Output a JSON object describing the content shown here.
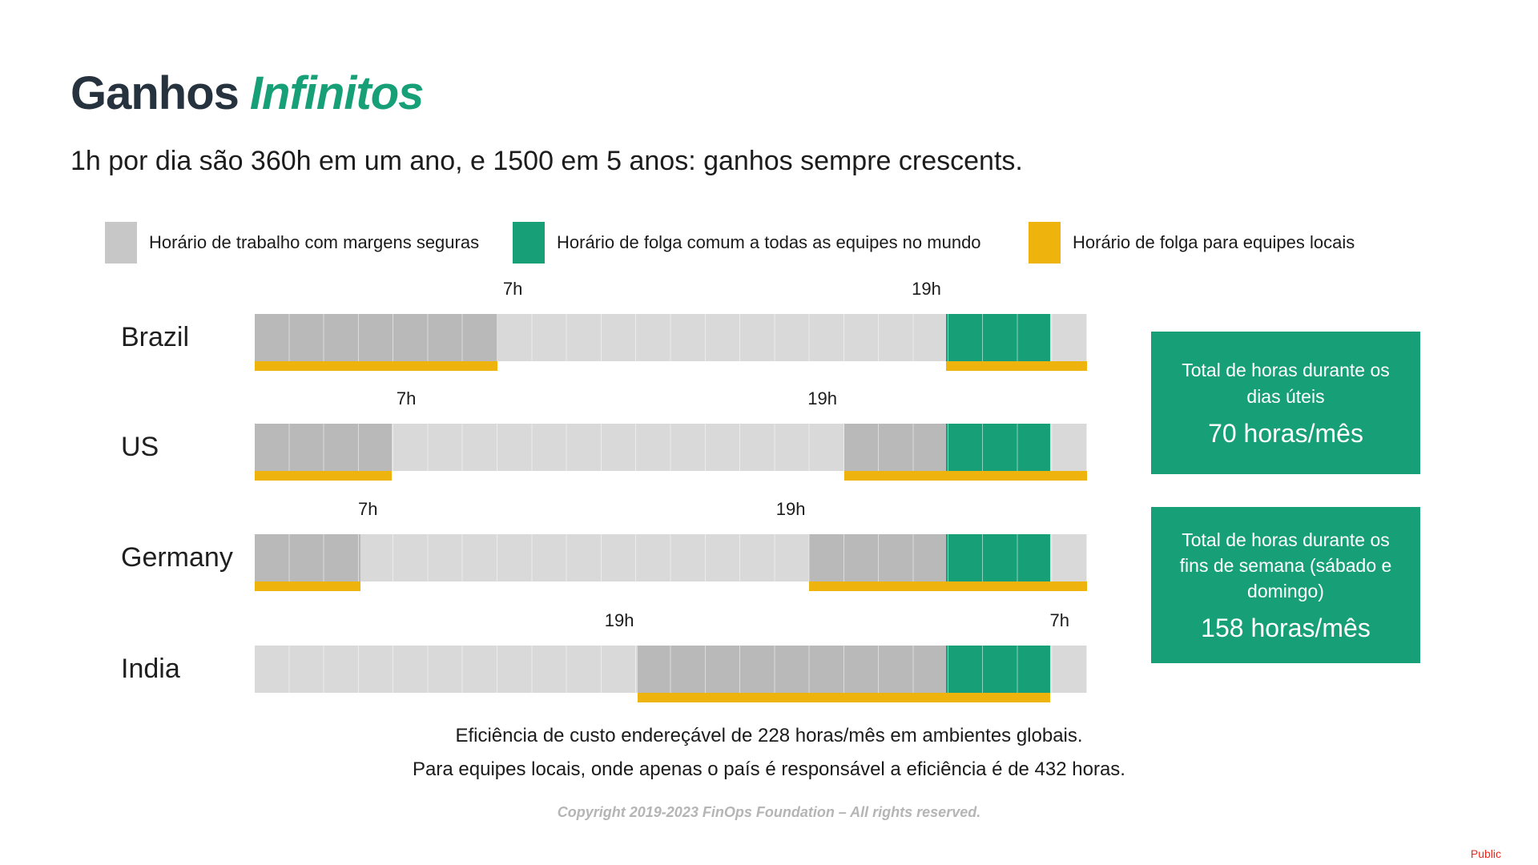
{
  "title": {
    "main": "Ganhos",
    "accent": "Infinitos"
  },
  "subtitle": "1h por dia são 360h em um ano, e 1500 em 5 anos: ganhos sempre crescents.",
  "legend": [
    {
      "label": "Horário de trabalho com margens seguras",
      "color": "#c7c7c7"
    },
    {
      "label": "Horário de folga comum a todas as equipes no mundo",
      "color": "#17a077"
    },
    {
      "label": "Horário de folga para equipes locais",
      "color": "#efb30d"
    }
  ],
  "colors": {
    "work_gray": "#b9b9b9",
    "base_gray": "#d9d9d9",
    "global_free_teal": "#17a077",
    "local_free_yellow": "#efb30d",
    "title_dark": "#26333e",
    "classification_red": "#e8291c"
  },
  "chart_data": {
    "type": "bar",
    "subtype": "24h-timeline-gantt",
    "description": "One 24h daily timeline bar per country. Gray segments = working hours with safe margins, teal segment = free time common to all teams worldwide, yellow underline = free time for local teams. Positions are percent of the 24h bar.",
    "categories": [
      "Brazil",
      "US",
      "Germany",
      "India"
    ],
    "rows": [
      {
        "country": "Brazil",
        "hour_labels": [
          {
            "text": "7h",
            "pos_pct": 31.0
          },
          {
            "text": "19h",
            "pos_pct": 80.7
          }
        ],
        "work_segments_pct": [
          [
            0,
            29.2
          ]
        ],
        "global_free_pct": [
          [
            83.1,
            95.6
          ]
        ],
        "local_free_pct": [
          [
            0,
            29.2
          ],
          [
            83.1,
            100
          ]
        ]
      },
      {
        "country": "US",
        "hour_labels": [
          {
            "text": "7h",
            "pos_pct": 18.2
          },
          {
            "text": "19h",
            "pos_pct": 68.2
          }
        ],
        "work_segments_pct": [
          [
            0,
            16.5
          ],
          [
            70.8,
            83.1
          ]
        ],
        "global_free_pct": [
          [
            83.1,
            95.6
          ]
        ],
        "local_free_pct": [
          [
            0,
            16.5
          ],
          [
            70.8,
            100
          ]
        ]
      },
      {
        "country": "Germany",
        "hour_labels": [
          {
            "text": "7h",
            "pos_pct": 13.6
          },
          {
            "text": "19h",
            "pos_pct": 64.4
          }
        ],
        "work_segments_pct": [
          [
            0,
            12.7
          ],
          [
            66.6,
            83.1
          ]
        ],
        "global_free_pct": [
          [
            83.1,
            95.6
          ]
        ],
        "local_free_pct": [
          [
            0,
            12.7
          ],
          [
            66.6,
            100
          ]
        ]
      },
      {
        "country": "India",
        "hour_labels": [
          {
            "text": "19h",
            "pos_pct": 43.8
          },
          {
            "text": "7h",
            "pos_pct": 96.7
          }
        ],
        "work_segments_pct": [
          [
            46.0,
            83.1
          ]
        ],
        "global_free_pct": [
          [
            83.1,
            95.6
          ]
        ],
        "local_free_pct": [
          [
            46.0,
            95.6
          ]
        ]
      }
    ],
    "summary_values": {
      "weekday_total": "70 horas/mês",
      "weekend_total": "158 horas/mês",
      "global_efficiency": "228 horas/mês",
      "local_efficiency": "432 horas"
    }
  },
  "cards": [
    {
      "title": "Total de horas durante os dias úteis",
      "value": "70 horas/mês"
    },
    {
      "title": "Total de horas durante os fins de semana (sábado e domingo)",
      "value": "158 horas/mês"
    }
  ],
  "notes": {
    "line1": "Eficiência de custo endereçável de 228 horas/mês em ambientes globais.",
    "line2": "Para equipes locais, onde apenas o país é responsável a eficiência é de 432 horas."
  },
  "footer": {
    "copyright": "Copyright 2019-2023 FinOps Foundation – All rights reserved.",
    "classification": "Public"
  }
}
